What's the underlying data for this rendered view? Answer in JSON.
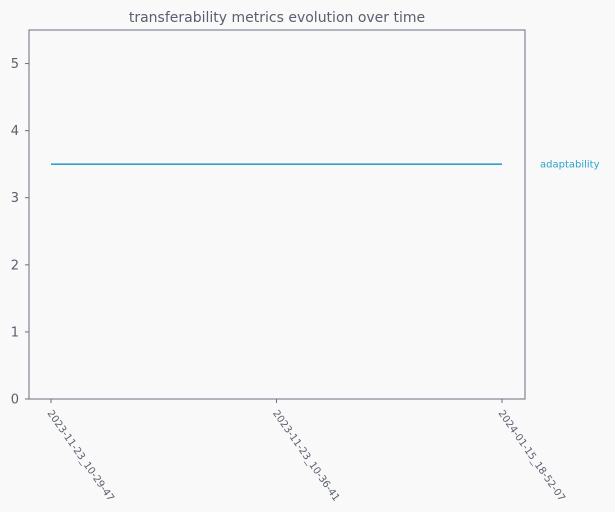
{
  "chart_data": {
    "type": "line",
    "title": "transferability metrics evolution over time",
    "xlabel": "",
    "ylabel": "",
    "categories": [
      "2023-11-23_10-29-47",
      "2023-11-23_10-36-41",
      "2024-01-15_18-52-07"
    ],
    "yticks": [
      0,
      1,
      2,
      3,
      4,
      5
    ],
    "ylim": [
      0,
      5.5
    ],
    "grid": false,
    "legend": "inline-right",
    "series": [
      {
        "name": "adaptability",
        "values": [
          3.5,
          3.5,
          3.5
        ],
        "color": "#2ba3cc"
      }
    ]
  },
  "colors": {
    "background": "#f9f9f9",
    "axis": "#6b6f80",
    "text": "#5a5f6e"
  }
}
